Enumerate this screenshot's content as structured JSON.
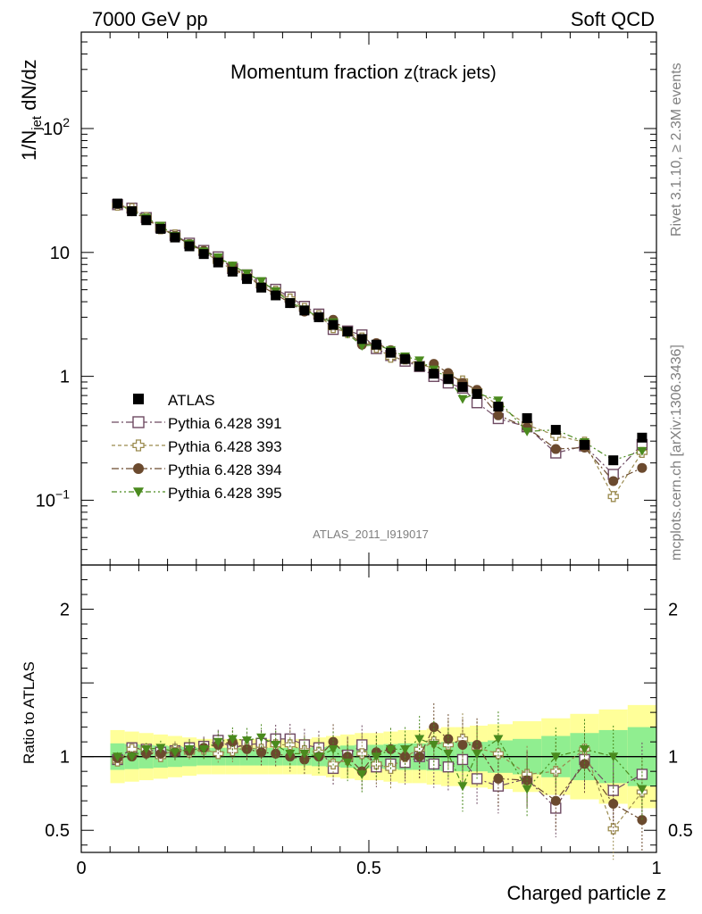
{
  "header": {
    "left": "7000 GeV pp",
    "right": "Soft QCD"
  },
  "side_text": {
    "rivet": "Rivet 3.1.10, ≥ 2.3M events",
    "mcplots": "mcplots.cern.ch [arXiv:1306.3436]"
  },
  "analysis_id": "ATLAS_2011_I919017",
  "chart_data": [
    {
      "type": "scatter",
      "title": "Momentum fraction",
      "title_suffix": "z(track jets)",
      "ylabel": "1/N_jet dN/dz",
      "ylabel_parts": {
        "main": "1/N",
        "sub": "jet",
        "rest": " dN/dz"
      },
      "yscale": "log",
      "ylim": [
        0.03,
        600
      ],
      "xlim": [
        0,
        1
      ],
      "ytick_labels": [
        {
          "value": 0.1,
          "base": "10",
          "exp": "−1"
        },
        {
          "value": 1,
          "label": "1"
        },
        {
          "value": 10,
          "label": "10"
        },
        {
          "value": 100,
          "base": "10",
          "exp": "2"
        }
      ],
      "legend_position": "middle-left",
      "x": [
        0.063,
        0.088,
        0.113,
        0.138,
        0.163,
        0.188,
        0.213,
        0.238,
        0.263,
        0.288,
        0.313,
        0.338,
        0.363,
        0.388,
        0.413,
        0.438,
        0.463,
        0.488,
        0.513,
        0.538,
        0.563,
        0.588,
        0.613,
        0.638,
        0.663,
        0.688,
        0.725,
        0.775,
        0.825,
        0.875,
        0.925,
        0.975
      ],
      "series": [
        {
          "name": "ATLAS",
          "style": "data",
          "color": "#000000",
          "marker": "square-filled",
          "values": [
            24.8,
            21.5,
            18.2,
            15.5,
            13.2,
            11.2,
            9.7,
            8.3,
            7.0,
            6.1,
            5.2,
            4.5,
            3.9,
            3.4,
            3.0,
            2.6,
            2.3,
            2.0,
            1.8,
            1.55,
            1.38,
            1.2,
            1.05,
            0.95,
            0.82,
            0.72,
            0.57,
            0.46,
            0.37,
            0.28,
            0.21,
            0.32
          ],
          "band_inner": [
            0.09,
            0.085,
            0.08,
            0.075,
            0.07,
            0.065,
            0.06,
            0.06,
            0.06,
            0.06,
            0.06,
            0.06,
            0.06,
            0.06,
            0.065,
            0.07,
            0.075,
            0.08,
            0.08,
            0.085,
            0.09,
            0.09,
            0.095,
            0.1,
            0.1,
            0.1,
            0.11,
            0.12,
            0.14,
            0.16,
            0.18,
            0.2
          ],
          "band_outer": [
            0.18,
            0.17,
            0.16,
            0.15,
            0.14,
            0.13,
            0.12,
            0.12,
            0.12,
            0.12,
            0.12,
            0.12,
            0.12,
            0.12,
            0.13,
            0.14,
            0.15,
            0.16,
            0.16,
            0.17,
            0.18,
            0.18,
            0.19,
            0.2,
            0.2,
            0.21,
            0.22,
            0.24,
            0.26,
            0.29,
            0.32,
            0.35
          ]
        },
        {
          "name": "Pythia 6.428 391",
          "style": "mc",
          "color": "#6e4a62",
          "marker": "square-open",
          "dash": "8,3,2,3",
          "ratio": [
            0.98,
            1.06,
            1.05,
            1.03,
            1.04,
            1.06,
            1.07,
            1.11,
            1.06,
            1.08,
            1.09,
            1.12,
            1.12,
            1.08,
            1.06,
            0.92,
            1.01,
            1.08,
            0.93,
            0.95,
            0.96,
            1.0,
            0.95,
            0.93,
            0.98,
            0.85,
            0.8,
            0.85,
            0.65,
            0.98,
            0.77,
            0.88
          ]
        },
        {
          "name": "Pythia 6.428 393",
          "style": "mc",
          "color": "#9a8a4e",
          "marker": "cross-open",
          "dash": "4,3",
          "ratio": [
            0.97,
            1.05,
            1.05,
            1.0,
            1.05,
            1.03,
            1.05,
            1.02,
            1.04,
            1.06,
            1.05,
            1.08,
            1.08,
            1.04,
            1.03,
            0.95,
            0.98,
            1.02,
            0.95,
            0.92,
            1.0,
            1.05,
            1.1,
            1.08,
            1.12,
            1.06,
            1.02,
            0.88,
            0.9,
            1.05,
            0.51,
            0.76
          ]
        },
        {
          "name": "Pythia 6.428 394",
          "style": "mc",
          "color": "#6b4a2e",
          "marker": "circle-filled",
          "dash": "8,3,2,3",
          "ratio": [
            0.99,
            1.0,
            1.02,
            1.02,
            1.03,
            1.04,
            1.06,
            1.08,
            1.1,
            1.05,
            1.03,
            1.02,
            1.0,
            0.98,
            1.0,
            1.1,
            1.0,
            0.9,
            1.03,
            1.05,
            1.0,
            1.0,
            1.2,
            1.12,
            1.08,
            1.08,
            0.85,
            0.84,
            0.7,
            0.95,
            0.68,
            0.57
          ]
        },
        {
          "name": "Pythia 6.428 395",
          "style": "mc",
          "color": "#4a8a1e",
          "marker": "triangle-down",
          "dash": "6,3,2,3,2,3",
          "ratio": [
            1.0,
            1.0,
            1.05,
            1.06,
            1.03,
            1.05,
            1.05,
            1.1,
            1.12,
            1.11,
            1.13,
            1.08,
            1.02,
            1.02,
            1.0,
            1.05,
            0.96,
            0.88,
            1.0,
            1.05,
            1.05,
            1.12,
            1.08,
            1.02,
            0.8,
            1.02,
            1.12,
            0.78,
            1.0,
            1.05,
            1.0,
            0.78
          ]
        }
      ]
    },
    {
      "type": "scatter",
      "ylabel": "Ratio to ATLAS",
      "xlabel": "Charged particle z",
      "ylim": [
        0.35,
        2.3
      ],
      "reference_line": 1,
      "ytick_labels": [
        "0.5",
        "1",
        "2"
      ],
      "xtick_labels": [
        "0",
        "0.5",
        "1"
      ],
      "band_colors": {
        "inner": "#90ee90",
        "outer": "#ffff99"
      }
    }
  ]
}
